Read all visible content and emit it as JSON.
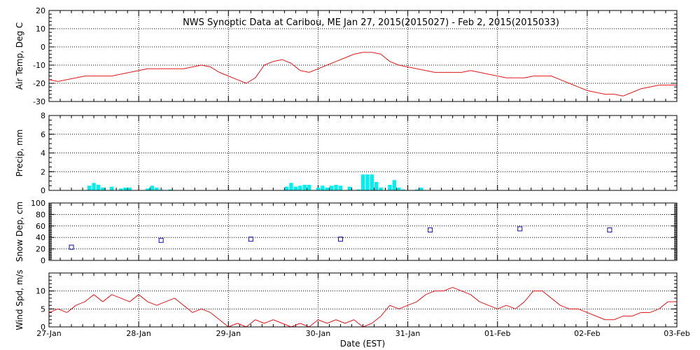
{
  "title": "NWS Synoptic Data at Caribou, ME   Jan 27, 2015(2015027) - Feb  2, 2015(2015033)",
  "xlabel": "Date (EST)",
  "x_ticks": [
    "27-Jan",
    "28-Jan",
    "29-Jan",
    "30-Jan",
    "31-Jan",
    "01-Feb",
    "02-Feb",
    "03-Feb"
  ],
  "colors": {
    "temp": "#e0161a",
    "precip": "#00f0f0",
    "snow": "#1010a0",
    "wind": "#e0161a"
  },
  "chart_data": [
    {
      "type": "line",
      "ylabel": "Air Temp, Deg C",
      "ylim": [
        -30,
        20
      ],
      "yticks": [
        "20",
        "10",
        "0",
        "-10",
        "-20",
        "-30"
      ],
      "grid": true,
      "x_days": [
        0.0,
        0.1,
        0.2,
        0.3,
        0.4,
        0.5,
        0.6,
        0.7,
        0.8,
        0.9,
        1.0,
        1.1,
        1.2,
        1.3,
        1.4,
        1.5,
        1.6,
        1.7,
        1.8,
        1.9,
        2.0,
        2.1,
        2.2,
        2.3,
        2.4,
        2.5,
        2.6,
        2.7,
        2.8,
        2.9,
        3.0,
        3.1,
        3.2,
        3.3,
        3.4,
        3.5,
        3.6,
        3.7,
        3.8,
        3.9,
        4.0,
        4.1,
        4.2,
        4.3,
        4.4,
        4.5,
        4.6,
        4.7,
        4.8,
        4.9,
        5.0,
        5.1,
        5.2,
        5.3,
        5.4,
        5.5,
        5.6,
        5.7,
        5.8,
        5.9,
        6.0,
        6.1,
        6.2,
        6.3,
        6.4,
        6.5,
        6.6,
        6.7,
        6.8,
        6.9,
        7.0
      ],
      "y": [
        -18,
        -19,
        -18,
        -17,
        -16,
        -16,
        -16,
        -16,
        -15,
        -14,
        -13,
        -12,
        -12,
        -12,
        -12,
        -12,
        -11,
        -10,
        -11,
        -14,
        -16,
        -18,
        -20,
        -17,
        -10,
        -8,
        -7,
        -9,
        -13,
        -14,
        -12,
        -10,
        -8,
        -6,
        -4,
        -3,
        -3,
        -4,
        -8,
        -10,
        -11,
        -12,
        -13,
        -14,
        -14,
        -14,
        -14,
        -13,
        -14,
        -15,
        -16,
        -17,
        -17,
        -17,
        -16,
        -16,
        -16,
        -18,
        -20,
        -22,
        -24,
        -25,
        -26,
        -26,
        -27,
        -25,
        -23,
        -22,
        -21,
        -21,
        -21
      ]
    },
    {
      "type": "bar",
      "ylabel": "Precip, mm",
      "ylim": [
        0,
        8
      ],
      "yticks": [
        "8",
        "6",
        "4",
        "2",
        "0"
      ],
      "grid": true,
      "x_days": [
        0.45,
        0.5,
        0.55,
        0.6,
        0.7,
        0.8,
        0.85,
        0.9,
        1.1,
        1.15,
        1.2,
        1.25,
        1.35,
        2.65,
        2.7,
        2.75,
        2.8,
        2.85,
        2.9,
        3.0,
        3.05,
        3.1,
        3.15,
        3.2,
        3.25,
        3.35,
        3.45,
        3.5,
        3.55,
        3.6,
        3.65,
        3.7,
        3.8,
        3.85,
        3.9,
        3.95,
        4.1,
        4.15
      ],
      "values": [
        0.5,
        0.8,
        0.6,
        0.3,
        0.4,
        0.2,
        0.3,
        0.3,
        0.2,
        0.5,
        0.3,
        0.1,
        0.1,
        0.4,
        0.8,
        0.4,
        0.5,
        0.6,
        0.6,
        0.3,
        0.5,
        0.3,
        0.5,
        0.6,
        0.5,
        0.4,
        0.1,
        1.7,
        1.7,
        1.7,
        0.9,
        0.3,
        0.6,
        1.1,
        0.3,
        0.1,
        0.1,
        0.3
      ]
    },
    {
      "type": "scatter",
      "ylabel": "Snow Dep, cm",
      "ylim": [
        0,
        100
      ],
      "yticks": [
        "100",
        "80",
        "60",
        "40",
        "20",
        "0"
      ],
      "grid": true,
      "x_days": [
        0.25,
        1.25,
        2.25,
        3.25,
        4.25,
        5.25,
        6.25
      ],
      "y": [
        23,
        35,
        37,
        37,
        53,
        55,
        53
      ]
    },
    {
      "type": "line",
      "ylabel": "Wind Spd, m/s",
      "ylim": [
        0,
        15
      ],
      "yticks": [
        "10",
        "5",
        "0"
      ],
      "grid": true,
      "x_days": [
        0.0,
        0.1,
        0.2,
        0.3,
        0.4,
        0.5,
        0.6,
        0.7,
        0.8,
        0.9,
        1.0,
        1.1,
        1.2,
        1.3,
        1.4,
        1.5,
        1.6,
        1.7,
        1.8,
        1.9,
        2.0,
        2.1,
        2.2,
        2.3,
        2.4,
        2.5,
        2.6,
        2.7,
        2.8,
        2.9,
        3.0,
        3.1,
        3.2,
        3.3,
        3.4,
        3.5,
        3.6,
        3.7,
        3.8,
        3.9,
        4.0,
        4.1,
        4.2,
        4.3,
        4.4,
        4.5,
        4.6,
        4.7,
        4.8,
        4.9,
        5.0,
        5.1,
        5.2,
        5.3,
        5.4,
        5.5,
        5.6,
        5.7,
        5.8,
        5.9,
        6.0,
        6.1,
        6.2,
        6.3,
        6.4,
        6.5,
        6.6,
        6.7,
        6.8,
        6.9,
        7.0
      ],
      "y": [
        4,
        5,
        4,
        6,
        7,
        9,
        7,
        9,
        8,
        7,
        9,
        7,
        6,
        7,
        8,
        6,
        4,
        5,
        4,
        2,
        0,
        1,
        0,
        2,
        1,
        2,
        1,
        0,
        1,
        0,
        2,
        1,
        2,
        1,
        2,
        0,
        1,
        3,
        6,
        5,
        6,
        7,
        9,
        10,
        10,
        11,
        10,
        9,
        7,
        6,
        5,
        6,
        5,
        7,
        10,
        10,
        8,
        6,
        5,
        5,
        4,
        3,
        2,
        2,
        3,
        3,
        4,
        4,
        5,
        7,
        7
      ]
    }
  ]
}
